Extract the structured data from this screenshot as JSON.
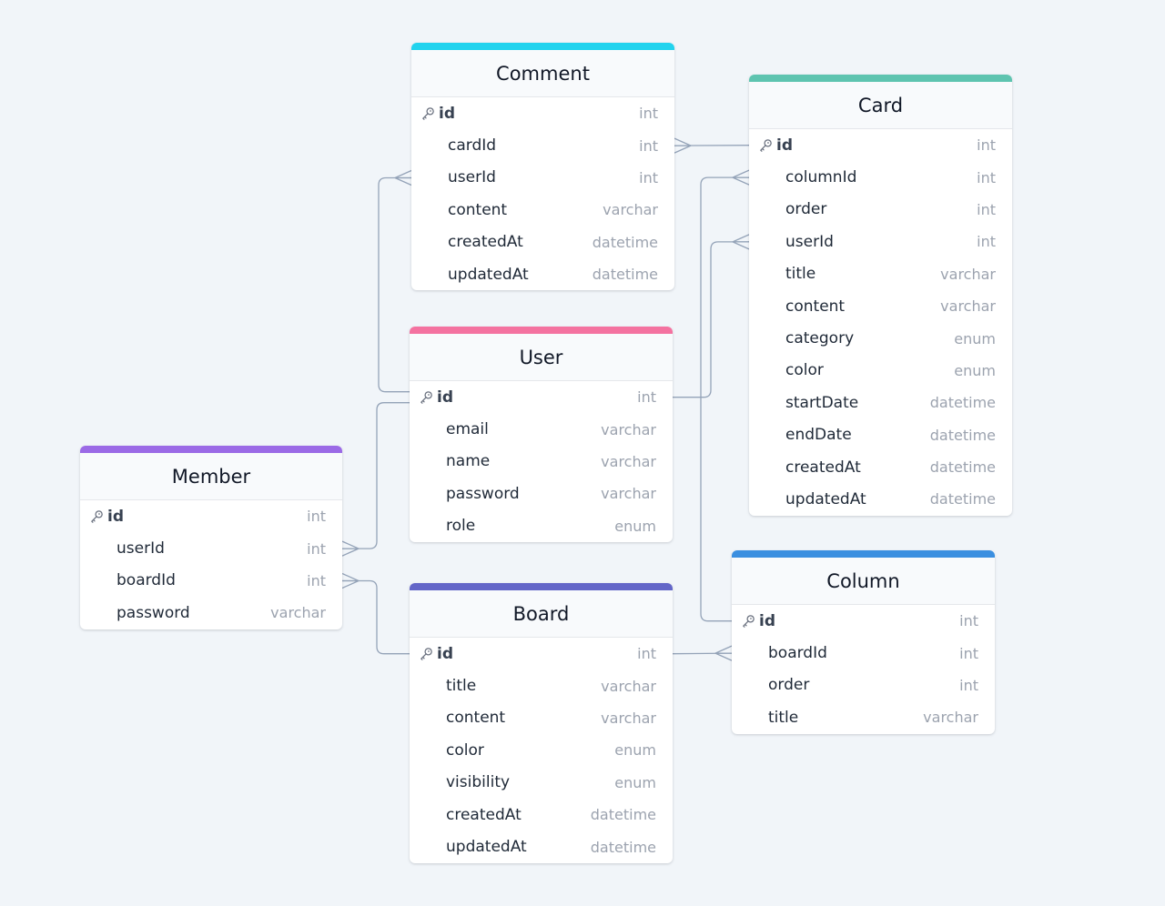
{
  "colors": {
    "background": "#f1f5f9",
    "edge": "#94a3b8",
    "comment": "#22d3ee",
    "card": "#5ec4b0",
    "user": "#f472a0",
    "member": "#9b6ae6",
    "board": "#6366c8",
    "column": "#3b8fe0"
  },
  "icons": {
    "primary_key": "key-icon"
  },
  "tables": [
    {
      "id": "comment",
      "name": "Comment",
      "color": "#22d3ee",
      "fields": [
        {
          "name": "id",
          "type": "int",
          "pk": true
        },
        {
          "name": "cardId",
          "type": "int"
        },
        {
          "name": "userId",
          "type": "int"
        },
        {
          "name": "content",
          "type": "varchar"
        },
        {
          "name": "createdAt",
          "type": "datetime"
        },
        {
          "name": "updatedAt",
          "type": "datetime"
        }
      ]
    },
    {
      "id": "card",
      "name": "Card",
      "color": "#5ec4b0",
      "fields": [
        {
          "name": "id",
          "type": "int",
          "pk": true
        },
        {
          "name": "columnId",
          "type": "int"
        },
        {
          "name": "order",
          "type": "int"
        },
        {
          "name": "userId",
          "type": "int"
        },
        {
          "name": "title",
          "type": "varchar"
        },
        {
          "name": "content",
          "type": "varchar"
        },
        {
          "name": "category",
          "type": "enum"
        },
        {
          "name": "color",
          "type": "enum"
        },
        {
          "name": "startDate",
          "type": "datetime"
        },
        {
          "name": "endDate",
          "type": "datetime"
        },
        {
          "name": "createdAt",
          "type": "datetime"
        },
        {
          "name": "updatedAt",
          "type": "datetime"
        }
      ]
    },
    {
      "id": "user",
      "name": "User",
      "color": "#f472a0",
      "fields": [
        {
          "name": "id",
          "type": "int",
          "pk": true
        },
        {
          "name": "email",
          "type": "varchar"
        },
        {
          "name": "name",
          "type": "varchar"
        },
        {
          "name": "password",
          "type": "varchar"
        },
        {
          "name": "role",
          "type": "enum"
        }
      ]
    },
    {
      "id": "member",
      "name": "Member",
      "color": "#9b6ae6",
      "fields": [
        {
          "name": "id",
          "type": "int",
          "pk": true
        },
        {
          "name": "userId",
          "type": "int"
        },
        {
          "name": "boardId",
          "type": "int"
        },
        {
          "name": "password",
          "type": "varchar"
        }
      ]
    },
    {
      "id": "board",
      "name": "Board",
      "color": "#6366c8",
      "fields": [
        {
          "name": "id",
          "type": "int",
          "pk": true
        },
        {
          "name": "title",
          "type": "varchar"
        },
        {
          "name": "content",
          "type": "varchar"
        },
        {
          "name": "color",
          "type": "enum"
        },
        {
          "name": "visibility",
          "type": "enum"
        },
        {
          "name": "createdAt",
          "type": "datetime"
        },
        {
          "name": "updatedAt",
          "type": "datetime"
        }
      ]
    },
    {
      "id": "column",
      "name": "Column",
      "color": "#3b8fe0",
      "fields": [
        {
          "name": "id",
          "type": "int",
          "pk": true
        },
        {
          "name": "boardId",
          "type": "int"
        },
        {
          "name": "order",
          "type": "int"
        },
        {
          "name": "title",
          "type": "varchar"
        }
      ]
    }
  ],
  "relations": [
    {
      "from": "comment.cardId",
      "to": "card.id",
      "type": "many-to-one"
    },
    {
      "from": "comment.userId",
      "to": "user.id",
      "type": "many-to-one"
    },
    {
      "from": "card.columnId",
      "to": "column.id",
      "type": "many-to-one"
    },
    {
      "from": "card.userId",
      "to": "user.id",
      "type": "many-to-one"
    },
    {
      "from": "member.userId",
      "to": "user.id",
      "type": "many-to-one"
    },
    {
      "from": "member.boardId",
      "to": "board.id",
      "type": "many-to-one"
    },
    {
      "from": "column.boardId",
      "to": "board.id",
      "type": "many-to-one"
    }
  ]
}
